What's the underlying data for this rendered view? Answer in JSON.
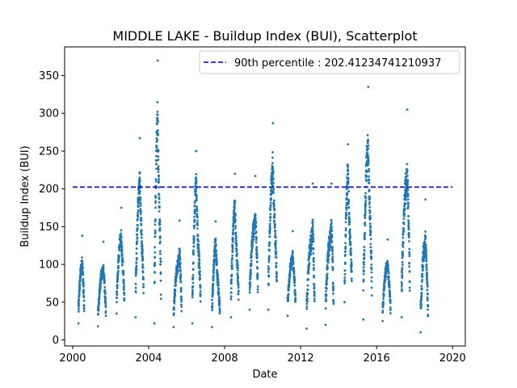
{
  "chart_data": {
    "type": "scatter",
    "title": "MIDDLE LAKE - Buildup Index (BUI), Scatterplot",
    "xlabel": "Date",
    "ylabel": "Buildup Index (BUI)",
    "xlim": [
      "1999-07-30",
      "2020-09-01"
    ],
    "ylim": [
      -8,
      388
    ],
    "x_ticks": [
      "2000",
      "2004",
      "2008",
      "2012",
      "2016",
      "2020"
    ],
    "x_tick_dates": [
      "2000-01-01",
      "2004-01-01",
      "2008-01-01",
      "2012-01-01",
      "2016-01-01",
      "2020-01-01"
    ],
    "y_ticks": [
      0,
      50,
      100,
      150,
      200,
      250,
      300,
      350
    ],
    "grid": false,
    "legend_position": "top-right",
    "colors": {
      "points": "#1f77b4",
      "reference_line": "#0000cc"
    },
    "reference_line": {
      "label": "90th percentile : 202.41234741210937",
      "value": 202.41234741210937,
      "x_start": "2000-01-01",
      "x_end": "2020-01-01",
      "style": "dashed"
    },
    "series": [
      {
        "season_ranges": [
          {
            "start": "2000-04-20",
            "end": "2000-08-10",
            "min": 22,
            "max": 138
          },
          {
            "start": "2001-05-01",
            "end": "2001-10-01",
            "min": 18,
            "max": 130
          },
          {
            "start": "2002-04-25",
            "end": "2002-09-20",
            "min": 35,
            "max": 175
          },
          {
            "start": "2003-04-25",
            "end": "2003-09-25",
            "min": 30,
            "max": 267
          },
          {
            "start": "2004-04-20",
            "end": "2004-08-25",
            "min": 22,
            "max": 370
          },
          {
            "start": "2005-04-25",
            "end": "2005-09-25",
            "min": 17,
            "max": 158
          },
          {
            "start": "2006-04-20",
            "end": "2006-09-25",
            "min": 22,
            "max": 250
          },
          {
            "start": "2007-05-01",
            "end": "2007-10-01",
            "min": 17,
            "max": 157
          },
          {
            "start": "2008-05-01",
            "end": "2008-09-25",
            "min": 30,
            "max": 220
          },
          {
            "start": "2009-04-25",
            "end": "2009-10-01",
            "min": 40,
            "max": 217
          },
          {
            "start": "2010-04-20",
            "end": "2010-09-30",
            "min": 40,
            "max": 287
          },
          {
            "start": "2011-04-25",
            "end": "2011-09-25",
            "min": 32,
            "max": 144
          },
          {
            "start": "2012-04-25",
            "end": "2012-09-25",
            "min": 15,
            "max": 207
          },
          {
            "start": "2013-04-25",
            "end": "2013-09-25",
            "min": 20,
            "max": 207
          },
          {
            "start": "2014-04-25",
            "end": "2014-09-10",
            "min": 50,
            "max": 259
          },
          {
            "start": "2015-04-20",
            "end": "2015-09-30",
            "min": 27,
            "max": 335
          },
          {
            "start": "2016-04-25",
            "end": "2016-09-25",
            "min": 25,
            "max": 133
          },
          {
            "start": "2017-04-25",
            "end": "2017-09-30",
            "min": 30,
            "max": 305
          },
          {
            "start": "2018-04-25",
            "end": "2018-09-15",
            "min": 10,
            "max": 186
          }
        ]
      }
    ]
  }
}
